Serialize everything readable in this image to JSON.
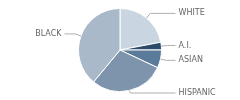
{
  "chart_data": {
    "type": "pie",
    "categories": [
      "WHITE",
      "A.I.",
      "ASIAN",
      "HISPANIC",
      "BLACK"
    ],
    "values": [
      22,
      3,
      7,
      29,
      39
    ],
    "colors": [
      "#c9d5e1",
      "#2c4a68",
      "#5b7b9b",
      "#7d94ac",
      "#a9b9c9"
    ]
  }
}
